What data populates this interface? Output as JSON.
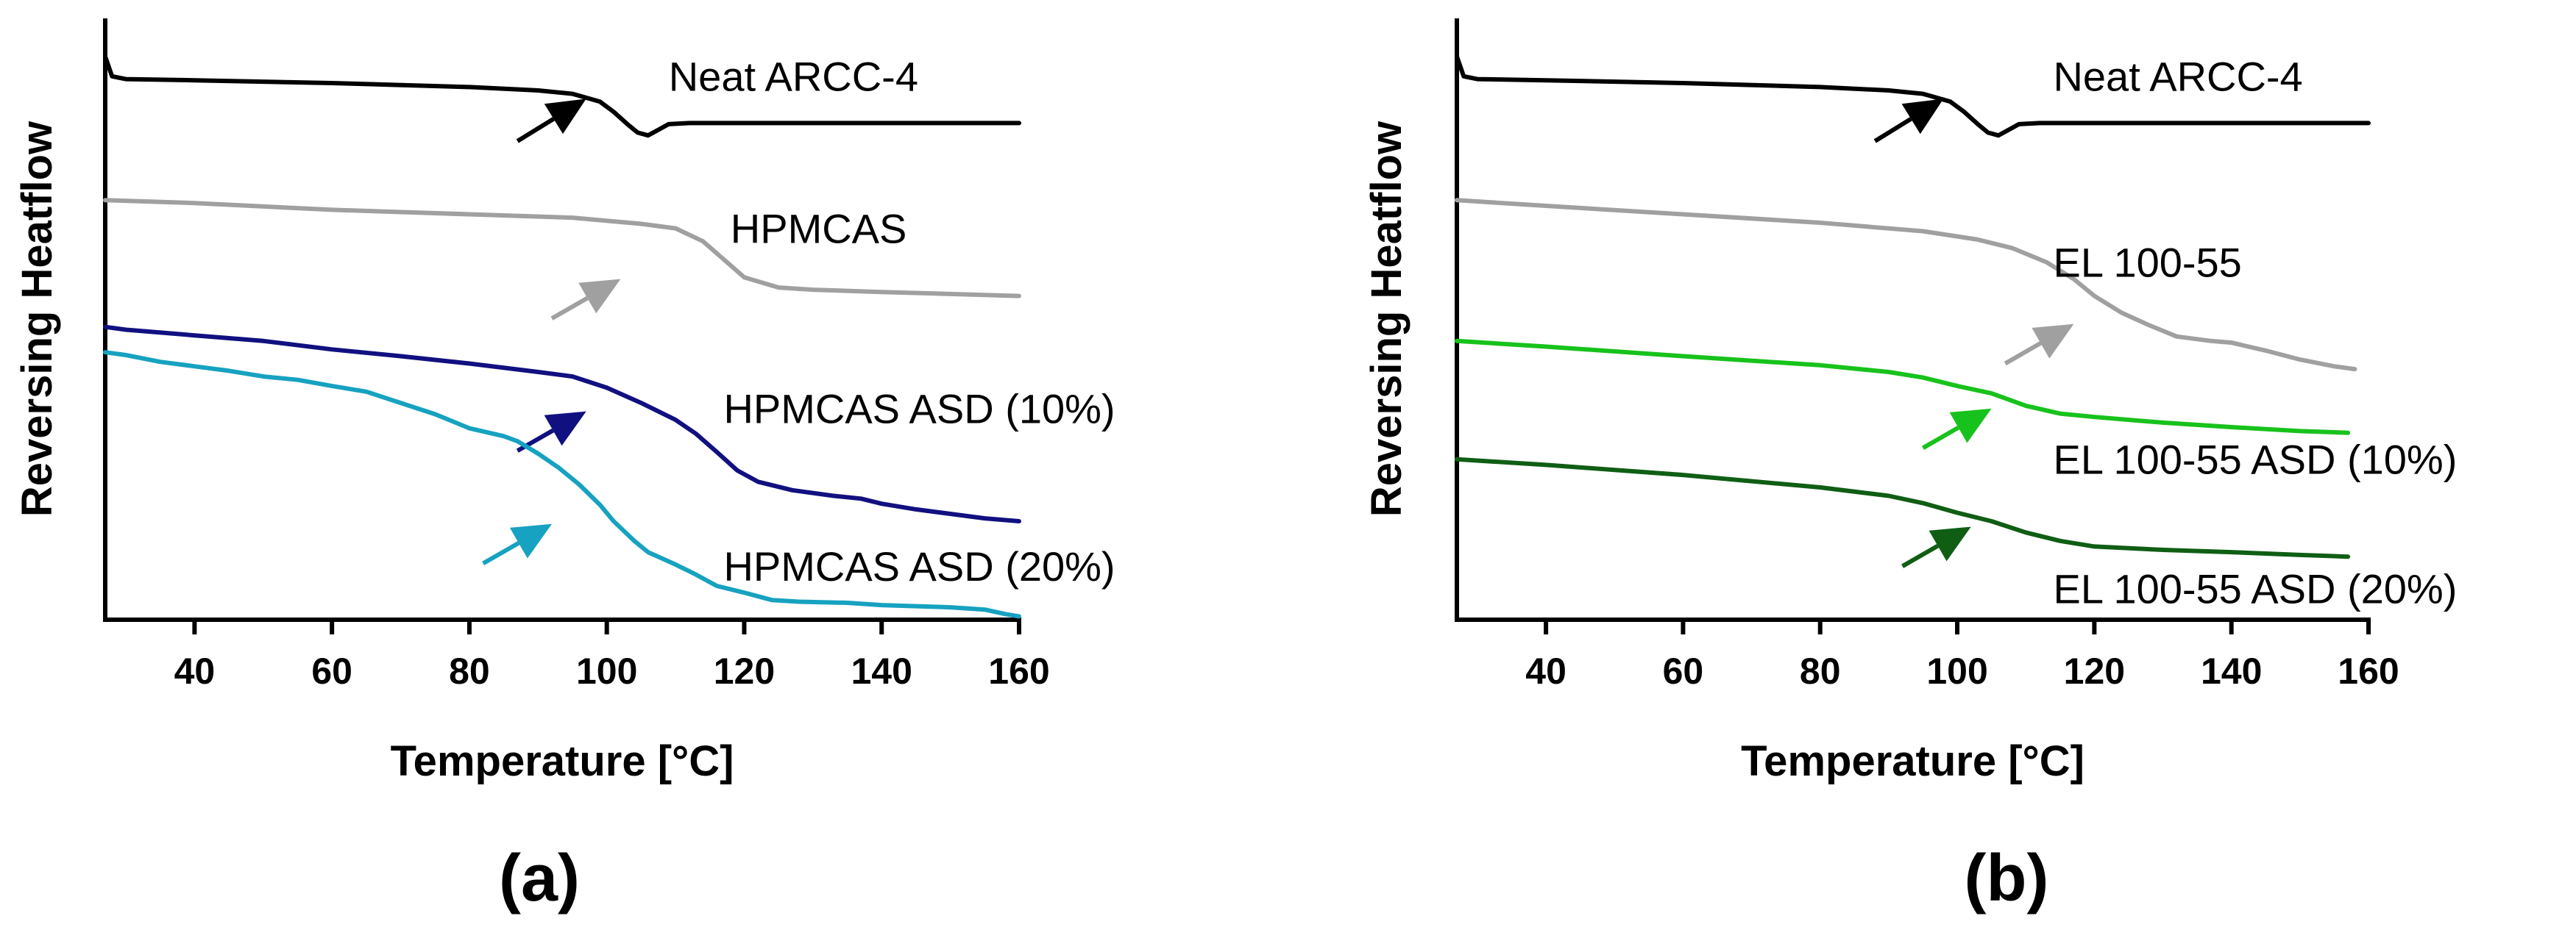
{
  "chart_data": [
    {
      "type": "line",
      "panel_label": "(a)",
      "xlabel": "Temperature [°C]",
      "ylabel": "Reversing Heatflow",
      "xlim": [
        27,
        160
      ],
      "ylim": [
        0,
        100
      ],
      "xticks": [
        40,
        60,
        80,
        100,
        120,
        140,
        160
      ],
      "yticks": [],
      "grid": false,
      "series": [
        {
          "name": "Neat ARCC-4",
          "color": "#000000",
          "label_at": [
            109,
            96
          ],
          "points": [
            [
              27,
              100
            ],
            [
              28,
              96.5
            ],
            [
              30,
              96
            ],
            [
              40,
              95.8
            ],
            [
              60,
              95.3
            ],
            [
              80,
              94.6
            ],
            [
              90,
              94
            ],
            [
              95,
              93.4
            ],
            [
              99,
              92
            ],
            [
              101,
              90.2
            ],
            [
              103,
              88
            ],
            [
              104.5,
              86.5
            ],
            [
              106,
              86
            ],
            [
              107.5,
              87
            ],
            [
              109,
              88
            ],
            [
              112,
              88.2
            ],
            [
              130,
              88.2
            ],
            [
              160,
              88.2
            ]
          ],
          "arrow": {
            "from": [
              87,
              85
            ],
            "to": [
              97,
              92.5
            ]
          }
        },
        {
          "name": "HPMCAS",
          "color": "#a0a0a0",
          "label_at": [
            118,
            69
          ],
          "points": [
            [
              27,
              74.5
            ],
            [
              40,
              74
            ],
            [
              60,
              72.8
            ],
            [
              80,
              72
            ],
            [
              95,
              71.4
            ],
            [
              105,
              70.3
            ],
            [
              110,
              69.5
            ],
            [
              114,
              67.2
            ],
            [
              117,
              64
            ],
            [
              120,
              60.8
            ],
            [
              125,
              59
            ],
            [
              130,
              58.6
            ],
            [
              140,
              58.2
            ],
            [
              160,
              57.5
            ]
          ],
          "arrow": {
            "from": [
              92,
              53.5
            ],
            "to": [
              102,
              60.5
            ]
          }
        },
        {
          "name": "HPMCAS ASD (10%)",
          "color": "#111080",
          "label_at": [
            117,
            37
          ],
          "points": [
            [
              27,
              52
            ],
            [
              30,
              51.5
            ],
            [
              40,
              50.5
            ],
            [
              50,
              49.5
            ],
            [
              60,
              48
            ],
            [
              70,
              46.8
            ],
            [
              80,
              45.5
            ],
            [
              90,
              44
            ],
            [
              95,
              43.2
            ],
            [
              100,
              41.2
            ],
            [
              105,
              38.5
            ],
            [
              110,
              35.5
            ],
            [
              113,
              33
            ],
            [
              116,
              29.8
            ],
            [
              119,
              26.5
            ],
            [
              122,
              24.5
            ],
            [
              127,
              23
            ],
            [
              133,
              22
            ],
            [
              137,
              21.5
            ],
            [
              140,
              20.6
            ],
            [
              145,
              19.6
            ],
            [
              150,
              18.8
            ],
            [
              155,
              18
            ],
            [
              160,
              17.5
            ]
          ],
          "arrow": {
            "from": [
              87,
              30
            ],
            "to": [
              97,
              37
            ]
          }
        },
        {
          "name": "HPMCAS ASD (20%)",
          "color": "#16a2c0",
          "label_at": [
            117,
            9
          ],
          "points": [
            [
              27,
              47.5
            ],
            [
              30,
              47
            ],
            [
              35,
              45.8
            ],
            [
              40,
              45
            ],
            [
              45,
              44.2
            ],
            [
              50,
              43.2
            ],
            [
              55,
              42.6
            ],
            [
              60,
              41.5
            ],
            [
              65,
              40.5
            ],
            [
              70,
              38.5
            ],
            [
              75,
              36.5
            ],
            [
              78,
              35
            ],
            [
              80,
              34
            ],
            [
              85,
              32.6
            ],
            [
              87,
              31.7
            ],
            [
              90,
              29.5
            ],
            [
              93,
              27
            ],
            [
              96,
              24
            ],
            [
              99,
              20.4
            ],
            [
              101,
              17.5
            ],
            [
              104,
              14
            ],
            [
              106,
              12
            ],
            [
              110,
              9.8
            ],
            [
              113,
              8
            ],
            [
              116,
              6
            ],
            [
              120,
              4.8
            ],
            [
              124,
              3.5
            ],
            [
              128,
              3.2
            ],
            [
              135,
              3
            ],
            [
              140,
              2.6
            ],
            [
              145,
              2.4
            ],
            [
              150,
              2.2
            ],
            [
              155,
              1.8
            ],
            [
              158,
              1
            ],
            [
              160,
              0.6
            ]
          ],
          "arrow": {
            "from": [
              82,
              10
            ],
            "to": [
              92,
              17
            ]
          }
        }
      ]
    },
    {
      "type": "line",
      "panel_label": "(b)",
      "xlabel": "Temperature [°C]",
      "ylabel": "Reversing Heatflow",
      "xlim": [
        27,
        160
      ],
      "ylim": [
        0,
        100
      ],
      "xticks": [
        40,
        60,
        80,
        100,
        120,
        140,
        160
      ],
      "yticks": [],
      "grid": false,
      "series": [
        {
          "name": "Neat ARCC-4",
          "color": "#000000",
          "label_at": [
            114,
            96
          ],
          "points": [
            [
              27,
              100
            ],
            [
              28,
              96.5
            ],
            [
              30,
              96
            ],
            [
              40,
              95.8
            ],
            [
              60,
              95.3
            ],
            [
              80,
              94.6
            ],
            [
              90,
              94
            ],
            [
              95,
              93.4
            ],
            [
              99,
              92
            ],
            [
              101,
              90.2
            ],
            [
              103,
              88
            ],
            [
              104.5,
              86.5
            ],
            [
              106,
              86
            ],
            [
              107.5,
              87
            ],
            [
              109,
              88
            ],
            [
              112,
              88.2
            ],
            [
              130,
              88.2
            ],
            [
              160,
              88.2
            ]
          ],
          "arrow": {
            "from": [
              88,
              85
            ],
            "to": [
              98,
              92.5
            ]
          }
        },
        {
          "name": "EL 100-55",
          "color": "#a0a0a0",
          "label_at": [
            114,
            63
          ],
          "points": [
            [
              27,
              74.5
            ],
            [
              40,
              73.5
            ],
            [
              60,
              72
            ],
            [
              80,
              70.5
            ],
            [
              95,
              69
            ],
            [
              103,
              67.5
            ],
            [
              108,
              66
            ],
            [
              113,
              63.5
            ],
            [
              117,
              60.5
            ],
            [
              120,
              57.5
            ],
            [
              124,
              54.5
            ],
            [
              128,
              52.3
            ],
            [
              132,
              50.3
            ],
            [
              137,
              49.5
            ],
            [
              140,
              49.2
            ],
            [
              145,
              47.8
            ],
            [
              150,
              46.2
            ],
            [
              155,
              45
            ],
            [
              158,
              44.5
            ]
          ],
          "arrow": {
            "from": [
              107,
              45.5
            ],
            "to": [
              117,
              52.5
            ]
          }
        },
        {
          "name": "EL 100-55 ASD (10%)",
          "color": "#18c21c",
          "label_at": [
            114,
            28
          ],
          "points": [
            [
              27,
              49.5
            ],
            [
              40,
              48.5
            ],
            [
              60,
              46.8
            ],
            [
              80,
              45.2
            ],
            [
              90,
              44
            ],
            [
              95,
              43
            ],
            [
              100,
              41.5
            ],
            [
              105,
              40.2
            ],
            [
              110,
              38
            ],
            [
              115,
              36.6
            ],
            [
              120,
              36
            ],
            [
              130,
              35
            ],
            [
              140,
              34.2
            ],
            [
              150,
              33.5
            ],
            [
              157,
              33.2
            ]
          ],
          "arrow": {
            "from": [
              95,
              30.5
            ],
            "to": [
              105,
              37.5
            ]
          }
        },
        {
          "name": "EL 100-55 ASD (20%)",
          "color": "#0f5e14",
          "label_at": [
            114,
            5
          ],
          "points": [
            [
              27,
              28.5
            ],
            [
              40,
              27.5
            ],
            [
              60,
              25.7
            ],
            [
              80,
              23.5
            ],
            [
              90,
              22
            ],
            [
              95,
              20.7
            ],
            [
              100,
              19
            ],
            [
              105,
              17.5
            ],
            [
              110,
              15.5
            ],
            [
              115,
              14
            ],
            [
              120,
              13
            ],
            [
              130,
              12.4
            ],
            [
              140,
              12
            ],
            [
              150,
              11.5
            ],
            [
              157,
              11.2
            ]
          ],
          "arrow": {
            "from": [
              92,
              9.5
            ],
            "to": [
              102,
              16.5
            ]
          }
        }
      ]
    }
  ]
}
